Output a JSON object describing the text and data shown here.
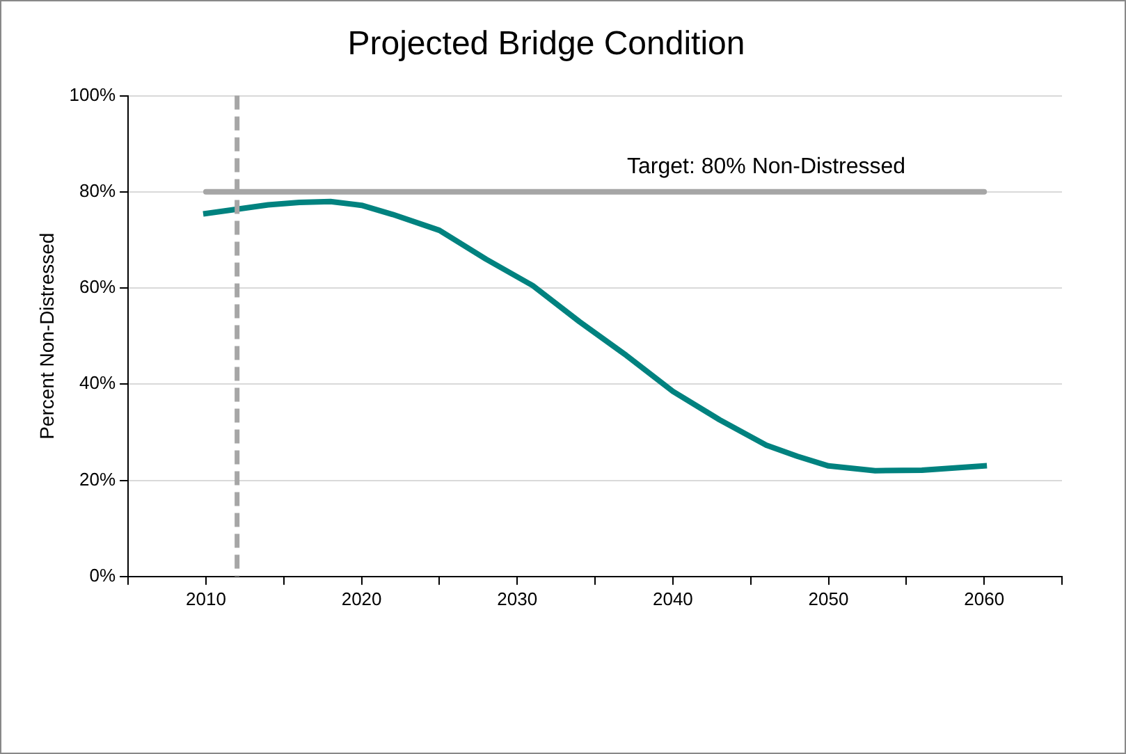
{
  "chart_data": {
    "type": "line",
    "title": "Projected Bridge Condition",
    "ylabel": "Percent Non-Distressed",
    "xlim": [
      2005,
      2065
    ],
    "xticks": [
      {
        "value": 2005,
        "label": null
      },
      2010,
      {
        "value": 2015,
        "label": null
      },
      2020,
      {
        "value": 2025,
        "label": null
      },
      2030,
      {
        "value": 2035,
        "label": null
      },
      2040,
      {
        "value": 2045,
        "label": null
      },
      2050,
      {
        "value": 2055,
        "label": null
      },
      2060,
      {
        "value": 2065,
        "label": null
      }
    ],
    "ylim": [
      0,
      100
    ],
    "yticks": [
      {
        "value": 0,
        "label": "0%"
      },
      {
        "value": 20,
        "label": "20%"
      },
      {
        "value": 40,
        "label": "40%"
      },
      {
        "value": 60,
        "label": "60%"
      },
      {
        "value": 80,
        "label": "80%"
      },
      {
        "value": 100,
        "label": "100%"
      }
    ],
    "series": [
      {
        "color": "#00827f",
        "x": [
          2010,
          2012,
          2014,
          2016,
          2018,
          2020,
          2022,
          2025,
          2028,
          2031,
          2034,
          2037,
          2040,
          2043,
          2046,
          2048,
          2050,
          2053,
          2056,
          2060
        ],
        "values": [
          75.5,
          76.4,
          77.3,
          77.8,
          78,
          77.2,
          75.3,
          72,
          66,
          60.5,
          53,
          46,
          38.5,
          32.6,
          27.3,
          25,
          23,
          22,
          22.1,
          23
        ]
      }
    ],
    "ref_lines": [
      {
        "axis": "x",
        "value": 2012,
        "color": "#a6a6a6",
        "line_style": "dashed"
      },
      {
        "axis": "y",
        "value": 80,
        "label": "Target: 80% Non-Distressed",
        "color": "#a6a6a6"
      }
    ],
    "grid": "y",
    "legend": false,
    "marker": "none",
    "line_style": "solid"
  }
}
